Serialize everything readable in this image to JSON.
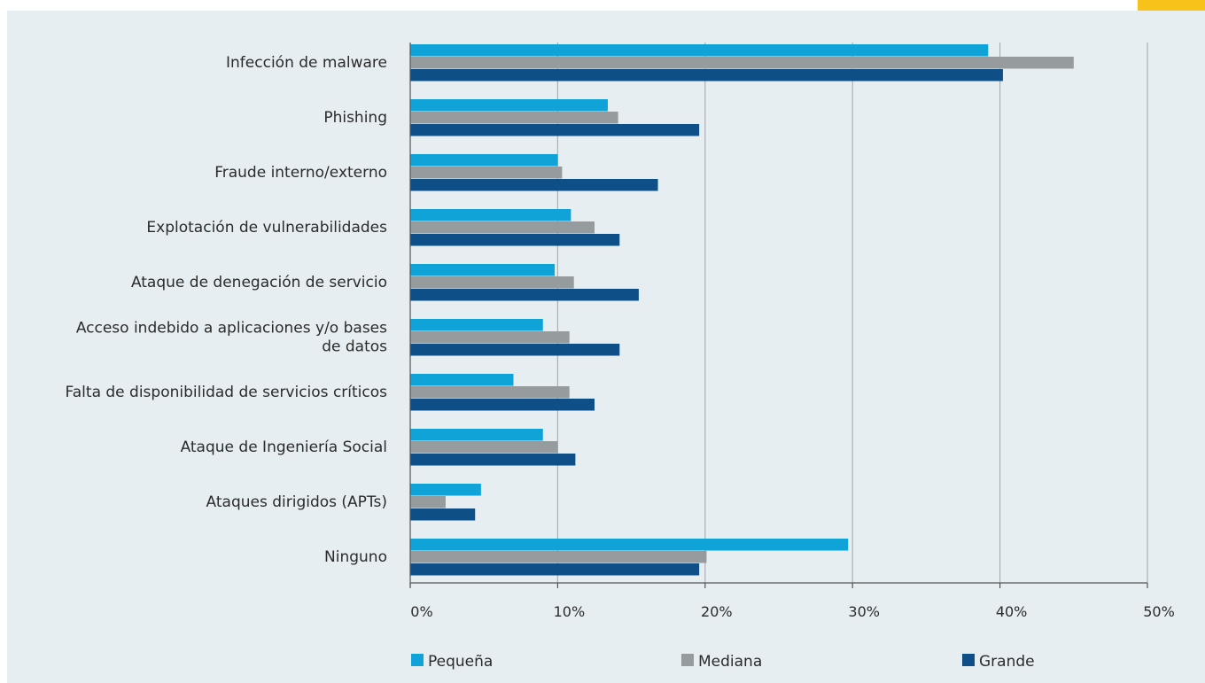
{
  "colors": {
    "accent_tab": "#f7c31a",
    "panel_bg": "#e6eef2",
    "grid": "#a9b1b5",
    "axis": "#555555"
  },
  "chart_data": {
    "type": "bar",
    "orientation": "horizontal",
    "categories": [
      [
        "Infección de malware"
      ],
      [
        "Phishing"
      ],
      [
        "Fraude interno/externo"
      ],
      [
        "Explotación de vulnerabilidades"
      ],
      [
        "Ataque de denegación de servicio"
      ],
      [
        "Acceso indebido a aplicaciones y/o bases",
        "de datos"
      ],
      [
        "Falta de disponibilidad de servicios críticos"
      ],
      [
        "Ataque de Ingeniería Social"
      ],
      [
        "Ataques dirigidos (APTs)"
      ],
      [
        "Ninguno"
      ]
    ],
    "series": [
      {
        "name": "Pequeña",
        "color": "#0fa3d8",
        "values": [
          39.2,
          13.4,
          10.0,
          10.9,
          9.8,
          9.0,
          7.0,
          9.0,
          4.8,
          29.7
        ]
      },
      {
        "name": "Mediana",
        "color": "#969c9e",
        "values": [
          45.0,
          14.1,
          10.3,
          12.5,
          11.1,
          10.8,
          10.8,
          10.0,
          2.4,
          20.1
        ]
      },
      {
        "name": "Grande",
        "color": "#0d4f86",
        "values": [
          40.2,
          19.6,
          16.8,
          14.2,
          15.5,
          14.2,
          12.5,
          11.2,
          4.4,
          19.6
        ]
      }
    ],
    "xlim": [
      0,
      50
    ],
    "xticks": [
      0,
      10,
      20,
      30,
      40,
      50
    ],
    "xtick_labels": [
      "0%",
      "10%",
      "20%",
      "30%",
      "40%",
      "50%"
    ],
    "grid": true,
    "legend_position": "bottom"
  }
}
